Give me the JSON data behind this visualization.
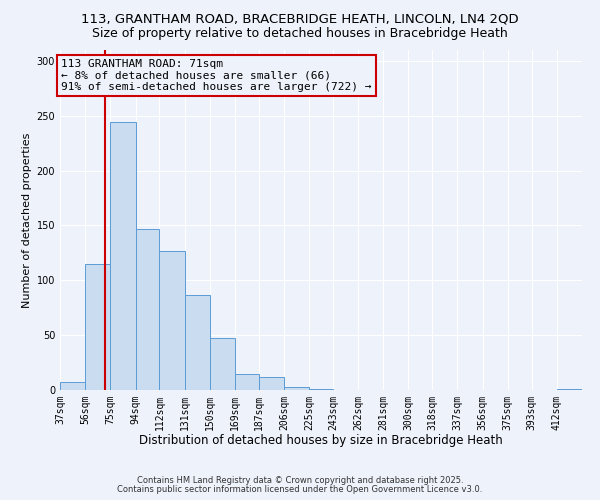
{
  "title1": "113, GRANTHAM ROAD, BRACEBRIDGE HEATH, LINCOLN, LN4 2QD",
  "title2": "Size of property relative to detached houses in Bracebridge Heath",
  "xlabel": "Distribution of detached houses by size in Bracebridge Heath",
  "ylabel": "Number of detached properties",
  "bin_labels": [
    "37sqm",
    "56sqm",
    "75sqm",
    "94sqm",
    "112sqm",
    "131sqm",
    "150sqm",
    "169sqm",
    "187sqm",
    "206sqm",
    "225sqm",
    "243sqm",
    "262sqm",
    "281sqm",
    "300sqm",
    "318sqm",
    "337sqm",
    "356sqm",
    "375sqm",
    "393sqm",
    "412sqm"
  ],
  "bin_edges": [
    37,
    56,
    75,
    94,
    112,
    131,
    150,
    169,
    187,
    206,
    225,
    243,
    262,
    281,
    300,
    318,
    337,
    356,
    375,
    393,
    412,
    431
  ],
  "bar_heights": [
    7,
    115,
    244,
    147,
    127,
    87,
    47,
    15,
    12,
    3,
    1,
    0,
    0,
    0,
    0,
    0,
    0,
    0,
    0,
    0,
    1
  ],
  "bar_color": "#c9dcf0",
  "bar_edge_color": "#5b9bd5",
  "vline_color": "#cc0000",
  "vline_x": 71,
  "annotation_line1": "113 GRANTHAM ROAD: 71sqm",
  "annotation_line2": "← 8% of detached houses are smaller (66)",
  "annotation_line3": "91% of semi-detached houses are larger (722) →",
  "annotation_box_color": "#cc0000",
  "ylim": [
    0,
    310
  ],
  "yticks": [
    0,
    50,
    100,
    150,
    200,
    250,
    300
  ],
  "footer1": "Contains HM Land Registry data © Crown copyright and database right 2025.",
  "footer2": "Contains public sector information licensed under the Open Government Licence v3.0.",
  "bg_color": "#eef2fb",
  "grid_color": "#ffffff",
  "title1_fontsize": 9.5,
  "title2_fontsize": 9,
  "xlabel_fontsize": 8.5,
  "ylabel_fontsize": 8,
  "tick_fontsize": 7,
  "annotation_fontsize": 8,
  "footer_fontsize": 6
}
